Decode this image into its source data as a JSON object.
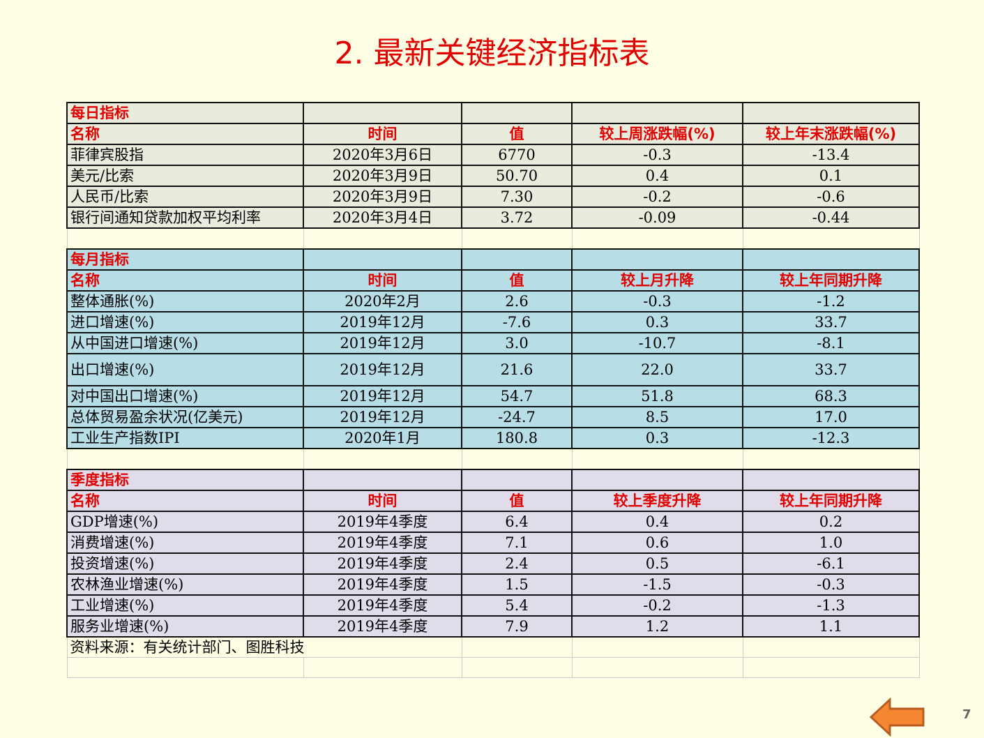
{
  "title": "2.  最新关键经济指标表",
  "daily": {
    "section": "每日指标",
    "headers": [
      "名称",
      "时间",
      "值",
      "较上周涨跌幅(%)",
      "较上年末涨跌幅(%)"
    ],
    "rows": [
      [
        "菲律宾股指",
        "2020年3月6日",
        "6770",
        "-0.3",
        "-13.4"
      ],
      [
        "美元/比索",
        "2020年3月9日",
        "50.70",
        "0.4",
        "0.1"
      ],
      [
        "人民币/比索",
        "2020年3月9日",
        "7.30",
        "-0.2",
        "-0.6"
      ],
      [
        "银行间通知贷款加权平均利率",
        "2020年3月4日",
        "3.72",
        "-0.09",
        "-0.44"
      ]
    ]
  },
  "monthly": {
    "section": "每月指标",
    "headers": [
      "名称",
      "时间",
      "值",
      "较上月升降",
      "较上年同期升降"
    ],
    "rows": [
      [
        "整体通胀(%)",
        "2020年2月",
        "2.6",
        "-0.3",
        "-1.2"
      ],
      [
        "进口增速(%)",
        "2019年12月",
        "-7.6",
        "0.3",
        "33.7"
      ],
      [
        "从中国进口增速(%)",
        "2019年12月",
        "3.0",
        "-10.7",
        "-8.1"
      ],
      [
        "出口增速(%)",
        "2019年12月",
        "21.6",
        "22.0",
        "33.7"
      ],
      [
        "对中国出口增速(%)",
        "2019年12月",
        "54.7",
        "51.8",
        "68.3"
      ],
      [
        "总体贸易盈余状况(亿美元)",
        "2019年12月",
        "-24.7",
        "8.5",
        "17.0"
      ],
      [
        "工业生产指数IPI",
        "2020年1月",
        "180.8",
        "0.3",
        "-12.3"
      ]
    ]
  },
  "quarterly": {
    "section": "季度指标",
    "headers": [
      "名称",
      "时间",
      "值",
      "较上季度升降",
      "较上年同期升降"
    ],
    "rows": [
      [
        "GDP增速(%)",
        "2019年4季度",
        "6.4",
        "0.4",
        "0.2"
      ],
      [
        "消费增速(%)",
        "2019年4季度",
        "7.1",
        "0.6",
        "1.0"
      ],
      [
        "投资增速(%)",
        "2019年4季度",
        "2.4",
        "0.5",
        "-6.1"
      ],
      [
        "农林渔业增速(%)",
        "2019年4季度",
        "1.5",
        "-1.5",
        "-0.3"
      ],
      [
        "工业增速(%)",
        "2019年4季度",
        "5.4",
        "-0.2",
        "-1.3"
      ],
      [
        "服务业增速(%)",
        "2019年4季度",
        "7.9",
        "1.2",
        "1.1"
      ]
    ]
  },
  "source": "资料来源：有关统计部门、图胜科技",
  "page_number": "7",
  "nav": {
    "icon": "left-arrow-icon",
    "color": "#f58733"
  }
}
